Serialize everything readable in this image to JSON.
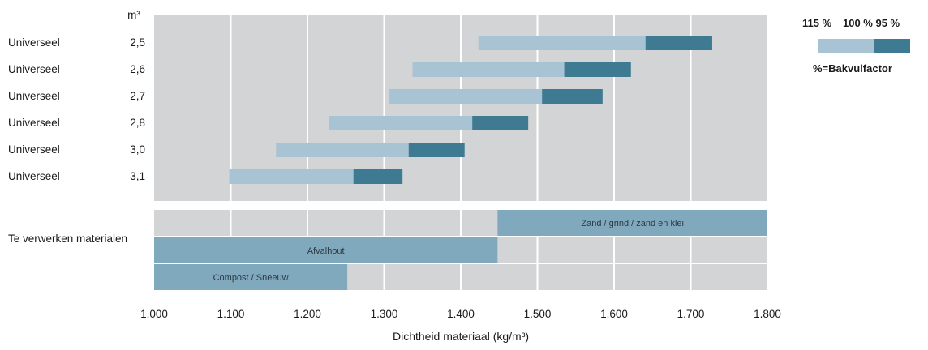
{
  "chart_data": {
    "type": "bar",
    "xlabel": "Dichtheid materiaal (kg/m³)",
    "xlim": [
      1000,
      1800
    ],
    "x_ticks": [
      "1.000",
      "1.100",
      "1.200",
      "1.300",
      "1.400",
      "1.500",
      "1.600",
      "1.700",
      "1.800"
    ],
    "x_tick_values": [
      1000,
      1100,
      1200,
      1300,
      1400,
      1500,
      1600,
      1700,
      1800
    ],
    "volume_unit": "m³",
    "rows": [
      {
        "name": "Universeel",
        "volume": "2,5",
        "start_115": 1423,
        "mid_100": 1641,
        "end_95": 1728
      },
      {
        "name": "Universeel",
        "volume": "2,6",
        "start_115": 1337,
        "mid_100": 1535,
        "end_95": 1622
      },
      {
        "name": "Universeel",
        "volume": "2,7",
        "start_115": 1307,
        "mid_100": 1506,
        "end_95": 1585
      },
      {
        "name": "Universeel",
        "volume": "2,8",
        "start_115": 1228,
        "mid_100": 1415,
        "end_95": 1488
      },
      {
        "name": "Universeel",
        "volume": "3,0",
        "start_115": 1159,
        "mid_100": 1332,
        "end_95": 1405
      },
      {
        "name": "Universeel",
        "volume": "3,1",
        "start_115": 1098,
        "mid_100": 1260,
        "end_95": 1324
      }
    ],
    "materials_label": "Te verwerken materialen",
    "materials": [
      {
        "name": "Zand / grind / zand en klei",
        "start": 1448,
        "end": 1800
      },
      {
        "name": "Afvalhout",
        "start": 1000,
        "end": 1448
      },
      {
        "name": "Compost / Sneeuw",
        "start": 1000,
        "end": 1252
      }
    ],
    "legend": {
      "label_115": "115 %",
      "label_100_95": "100 % 95 %",
      "caption": "%=Bakvulfactor"
    },
    "colors": {
      "panel": "#d3d4d6",
      "grid": "#ffffff",
      "bar_light": "#a8c3d3",
      "bar_dark": "#3e7b93",
      "material": "#81a9be"
    }
  }
}
